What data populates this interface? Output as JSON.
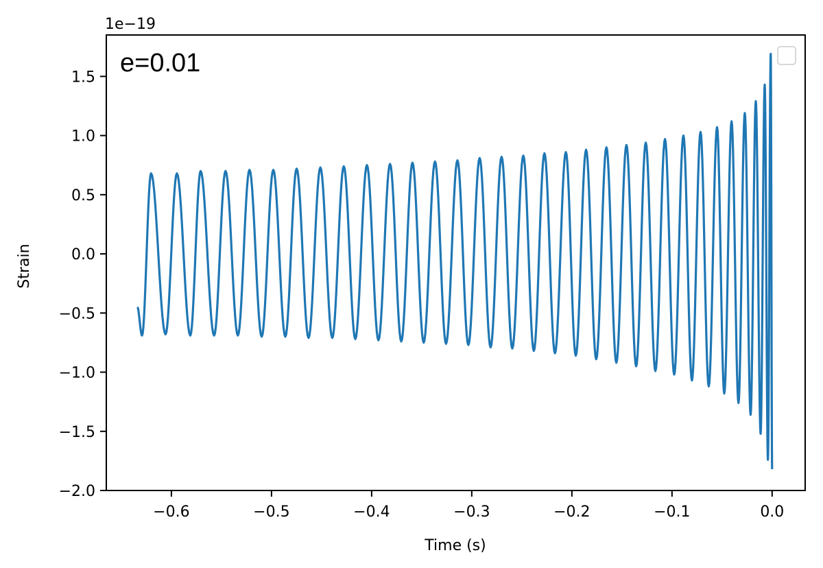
{
  "chart_data": {
    "type": "line",
    "title": "",
    "xlabel": "Time (s)",
    "ylabel": "Strain",
    "offset_label": "1e−19",
    "annotation": "e=0.01",
    "xlim": [
      -0.665,
      0.033
    ],
    "ylim": [
      -2.0,
      1.85
    ],
    "x_ticks": [
      -0.6,
      -0.5,
      -0.4,
      -0.3,
      -0.2,
      -0.1,
      0.0
    ],
    "x_tick_labels": [
      "−0.6",
      "−0.5",
      "−0.4",
      "−0.3",
      "−0.2",
      "−0.1",
      "0.0"
    ],
    "y_ticks": [
      -2.0,
      -1.5,
      -1.0,
      -0.5,
      0.0,
      0.5,
      1.0,
      1.5
    ],
    "y_tick_labels": [
      "−2.0",
      "−1.5",
      "−1.0",
      "−0.5",
      "0.0",
      "0.5",
      "1.0",
      "1.5"
    ],
    "grid": false,
    "legend": {
      "placement": "top-right",
      "entries": []
    },
    "series": [
      {
        "color": "#1f77b4",
        "t_start": -0.634,
        "t_end": 0.0,
        "initial_value": -0.45,
        "final_value": -1.82,
        "maxima": [
          [
            -0.6203,
            0.68
          ],
          [
            -0.5945,
            0.68
          ],
          [
            -0.5708,
            0.7
          ],
          [
            -0.5459,
            0.7
          ],
          [
            -0.522,
            0.71
          ],
          [
            -0.4982,
            0.71
          ],
          [
            -0.4749,
            0.72
          ],
          [
            -0.4512,
            0.73
          ],
          [
            -0.4278,
            0.74
          ],
          [
            -0.4047,
            0.75
          ],
          [
            -0.3816,
            0.76
          ],
          [
            -0.3592,
            0.77
          ],
          [
            -0.3367,
            0.78
          ],
          [
            -0.3143,
            0.79
          ],
          [
            -0.2921,
            0.81
          ],
          [
            -0.2702,
            0.82
          ],
          [
            -0.2485,
            0.83
          ],
          [
            -0.2274,
            0.85
          ],
          [
            -0.206,
            0.86
          ],
          [
            -0.1858,
            0.88
          ],
          [
            -0.1655,
            0.9
          ],
          [
            -0.1455,
            0.92
          ],
          [
            -0.1262,
            0.94
          ],
          [
            -0.107,
            0.97
          ],
          [
            -0.0886,
            1.0
          ],
          [
            -0.0715,
            1.03
          ],
          [
            -0.055,
            1.07
          ],
          [
            -0.0405,
            1.12
          ],
          [
            -0.0273,
            1.19
          ],
          [
            -0.0163,
            1.29
          ],
          [
            -0.0074,
            1.43
          ],
          [
            -0.0014,
            1.69
          ]
        ],
        "minima": [
          [
            -0.6293,
            -0.69
          ],
          [
            -0.6058,
            -0.68
          ],
          [
            -0.5811,
            -0.69
          ],
          [
            -0.5573,
            -0.69
          ],
          [
            -0.5336,
            -0.69
          ],
          [
            -0.5098,
            -0.7
          ],
          [
            -0.4862,
            -0.7
          ],
          [
            -0.463,
            -0.71
          ],
          [
            -0.4393,
            -0.71
          ],
          [
            -0.4163,
            -0.72
          ],
          [
            -0.3932,
            -0.73
          ],
          [
            -0.3704,
            -0.74
          ],
          [
            -0.348,
            -0.75
          ],
          [
            -0.3257,
            -0.76
          ],
          [
            -0.3034,
            -0.77
          ],
          [
            -0.2812,
            -0.79
          ],
          [
            -0.2595,
            -0.8
          ],
          [
            -0.238,
            -0.82
          ],
          [
            -0.2169,
            -0.84
          ],
          [
            -0.1961,
            -0.86
          ],
          [
            -0.1757,
            -0.89
          ],
          [
            -0.1556,
            -0.92
          ],
          [
            -0.1358,
            -0.95
          ],
          [
            -0.1166,
            -0.99
          ],
          [
            -0.0978,
            -1.02
          ],
          [
            -0.0801,
            -1.07
          ],
          [
            -0.0633,
            -1.12
          ],
          [
            -0.0478,
            -1.18
          ],
          [
            -0.0336,
            -1.26
          ],
          [
            -0.0215,
            -1.36
          ],
          [
            -0.0115,
            -1.52
          ],
          [
            -0.0042,
            -1.74
          ]
        ]
      }
    ]
  }
}
